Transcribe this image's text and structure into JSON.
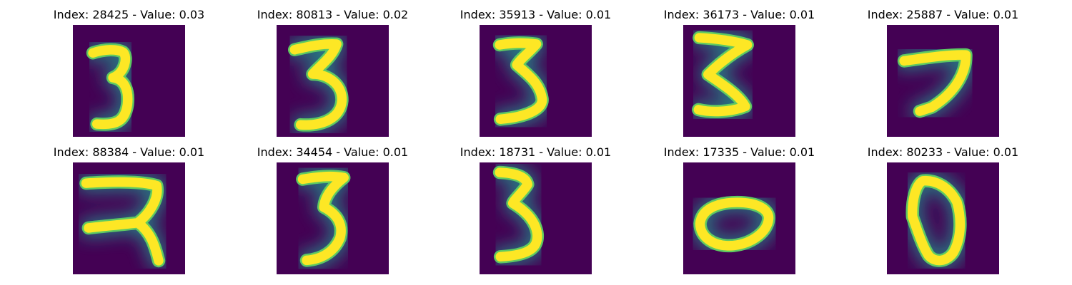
{
  "palette": {
    "background": "#440154",
    "low": "#3b528b",
    "mid": "#21918c",
    "high": "#5ec962",
    "peak": "#fde725"
  },
  "chart_data": {
    "type": "image-grid",
    "colormap": "viridis",
    "image_size": [
      28,
      28
    ],
    "grid": {
      "rows": 2,
      "cols": 5
    },
    "panels": [
      {
        "index": 28425,
        "value": 0.03,
        "title": "Index: 28425 - Value: 0.03",
        "glyph": "3"
      },
      {
        "index": 80813,
        "value": 0.02,
        "title": "Index: 80813 - Value: 0.02",
        "glyph": "3"
      },
      {
        "index": 35913,
        "value": 0.01,
        "title": "Index: 35913 - Value: 0.01",
        "glyph": "3"
      },
      {
        "index": 36173,
        "value": 0.01,
        "title": "Index: 36173 - Value: 0.01",
        "glyph": "3"
      },
      {
        "index": 25887,
        "value": 0.01,
        "title": "Index: 25887 - Value: 0.01",
        "glyph": "7"
      },
      {
        "index": 88384,
        "value": 0.01,
        "title": "Index: 88384 - Value: 0.01",
        "glyph": "3"
      },
      {
        "index": 34454,
        "value": 0.01,
        "title": "Index: 34454 - Value: 0.01",
        "glyph": "3"
      },
      {
        "index": 18731,
        "value": 0.01,
        "title": "Index: 18731 - Value: 0.01",
        "glyph": "3"
      },
      {
        "index": 17335,
        "value": 0.01,
        "title": "Index: 17335 - Value: 0.01",
        "glyph": "0"
      },
      {
        "index": 80233,
        "value": 0.01,
        "title": "Index: 80233 - Value: 0.01",
        "glyph": "0"
      }
    ]
  }
}
